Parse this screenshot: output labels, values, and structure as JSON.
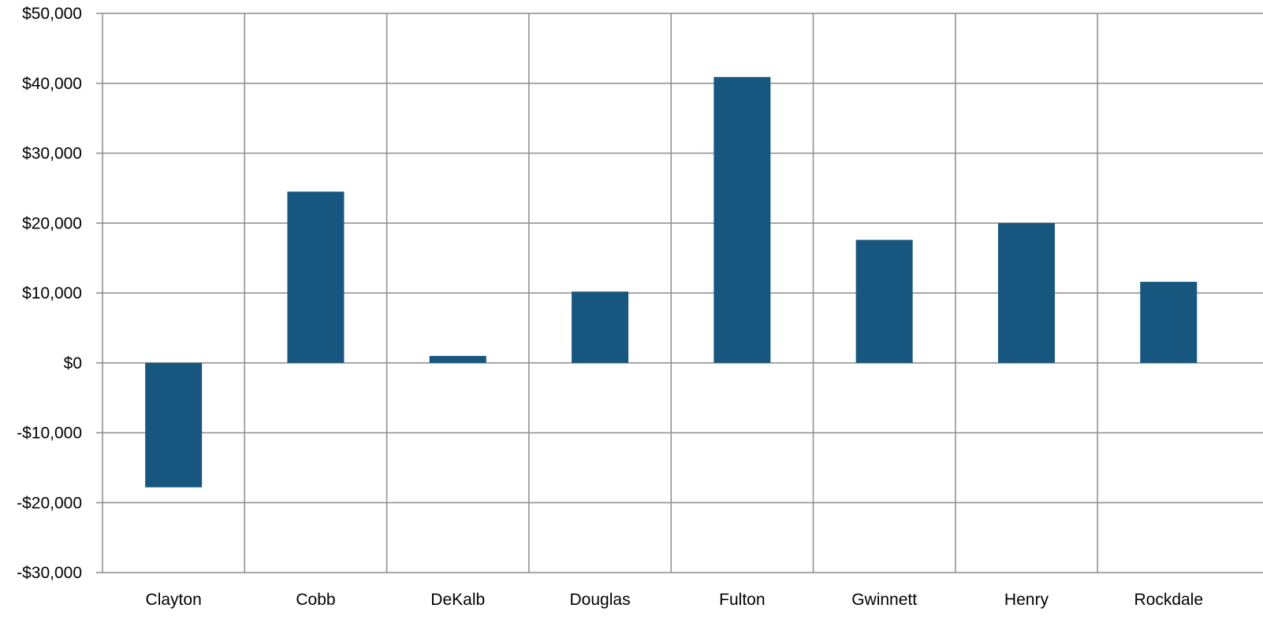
{
  "chart_data": {
    "type": "bar",
    "title": "",
    "categories": [
      "Clayton",
      "Cobb",
      "DeKalb",
      "Douglas",
      "Fulton",
      "Gwinnett",
      "Henry",
      "Rockdale"
    ],
    "values": [
      -17800,
      24500,
      1000,
      10200,
      40900,
      17600,
      20000,
      11600
    ],
    "ylim": [
      -30000,
      50000
    ],
    "yticks": [
      50000,
      40000,
      30000,
      20000,
      10000,
      0,
      -10000,
      -20000,
      -30000
    ],
    "ytick_labels": [
      "$50,000",
      "$40,000",
      "$30,000",
      "$20,000",
      "$10,000",
      "$0",
      "-$10,000",
      "-$20,000",
      "-$30,000"
    ],
    "xlabel": "",
    "ylabel": "",
    "grid": true,
    "legend": "none",
    "colors": {
      "bar": "#17577f",
      "grid": "#8c8c8c",
      "axis": "#8c8c8c"
    }
  }
}
